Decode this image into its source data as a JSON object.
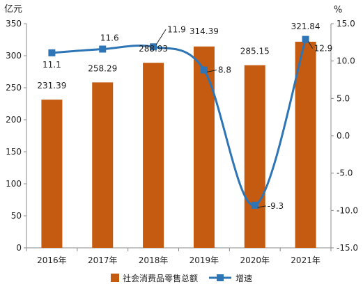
{
  "chart_data": {
    "type": "bar",
    "title": "",
    "categories": [
      "2016年",
      "2017年",
      "2018年",
      "2019年",
      "2020年",
      "2021年"
    ],
    "series": [
      {
        "name": "社会消费品零售总额",
        "type": "bar",
        "axis": "left",
        "values": [
          231.39,
          258.29,
          288.93,
          314.39,
          285.15,
          321.84
        ],
        "labels": [
          "231.39",
          "258.29",
          "288.93",
          "314.39",
          "285.15",
          "321.84"
        ],
        "color": "#C55A11"
      },
      {
        "name": "增速",
        "type": "line",
        "axis": "right",
        "values": [
          11.1,
          11.6,
          11.9,
          8.8,
          -9.3,
          12.9
        ],
        "labels": [
          "11.1",
          "11.6",
          "11.9",
          "8.8",
          "-9.3",
          "12.9"
        ],
        "color": "#2E75B6"
      }
    ],
    "y_left": {
      "unit": "亿元",
      "range": [
        0,
        350
      ],
      "ticks": [
        "0",
        "50",
        "100",
        "150",
        "200",
        "250",
        "300",
        "350"
      ]
    },
    "y_right": {
      "unit": "%",
      "range": [
        -15,
        15
      ],
      "ticks": [
        "-15.0",
        "-10.0",
        "-5.0",
        "0.0",
        "5.0",
        "10.0",
        "15.0"
      ]
    },
    "grid": false,
    "legend_position": "bottom"
  }
}
